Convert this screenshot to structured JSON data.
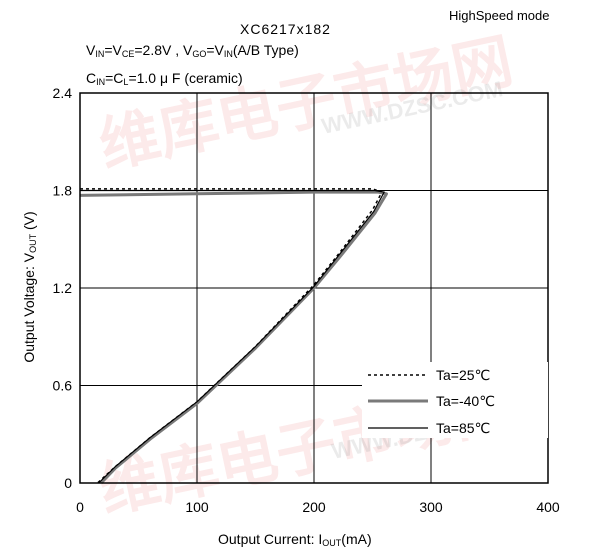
{
  "header": {
    "mode": "HighSpeed mode",
    "title": "XC6217x182",
    "cond1_v_in": "V",
    "cond1_in": "IN",
    "cond1_eq1": "=V",
    "cond1_ce": "CE",
    "cond1_rest": "=2.8V , V",
    "cond1_go": "GO",
    "cond1_eq2": "=V",
    "cond1_in2": "IN",
    "cond1_tail": "(A/B Type)",
    "cond2_c": "C",
    "cond2_in": "IN",
    "cond2_eq": "=C",
    "cond2_l": "L",
    "cond2_tail": "=1.0 μ F (ceramic)"
  },
  "axes": {
    "xlabel_main": "Output Current: I",
    "xlabel_sub": "OUT",
    "xlabel_unit": "(mA)",
    "ylabel_main": "Output Voltage: V",
    "ylabel_sub": "OUT",
    "ylabel_unit": " (V)"
  },
  "watermark": {
    "cn": "维库电子市场网",
    "en": "WWW.DZSC.COM"
  },
  "chart_data": {
    "type": "line",
    "title": "XC6217x182",
    "xlabel": "Output Current: IOUT(mA)",
    "ylabel": "Output Voltage: VOUT (V)",
    "xlim": [
      0,
      400
    ],
    "ylim": [
      0,
      2.4
    ],
    "xticks": [
      0,
      100,
      200,
      300,
      400
    ],
    "yticks": [
      0,
      0.6,
      1.2,
      1.8,
      2.4
    ],
    "ytick_labels": [
      "0",
      "0.6",
      "1.2",
      "1.8",
      "2.4"
    ],
    "grid": true,
    "legend_position": "bottom-right",
    "series": [
      {
        "name": "Ta=25℃",
        "style": "dotted",
        "color": "#000000",
        "x": [
          0,
          100,
          200,
          250,
          258,
          250,
          220,
          200,
          150,
          100,
          60,
          30,
          15
        ],
        "y": [
          1.81,
          1.81,
          1.81,
          1.81,
          1.79,
          1.68,
          1.4,
          1.22,
          0.84,
          0.5,
          0.28,
          0.1,
          0
        ]
      },
      {
        "name": "Ta=-40℃",
        "style": "thick",
        "color": "#7a7a7a",
        "x": [
          0,
          100,
          200,
          255,
          262,
          252,
          222,
          200,
          150,
          100,
          60,
          30,
          18
        ],
        "y": [
          1.77,
          1.78,
          1.79,
          1.79,
          1.78,
          1.66,
          1.39,
          1.2,
          0.83,
          0.49,
          0.27,
          0.09,
          0
        ]
      },
      {
        "name": "Ta=85℃",
        "style": "solid",
        "color": "#000000",
        "x": [
          0,
          100,
          200,
          252,
          260,
          251,
          221,
          200,
          150,
          100,
          60,
          30,
          16
        ],
        "y": [
          1.8,
          1.8,
          1.8,
          1.8,
          1.79,
          1.67,
          1.4,
          1.21,
          0.84,
          0.5,
          0.28,
          0.1,
          0
        ]
      }
    ]
  }
}
